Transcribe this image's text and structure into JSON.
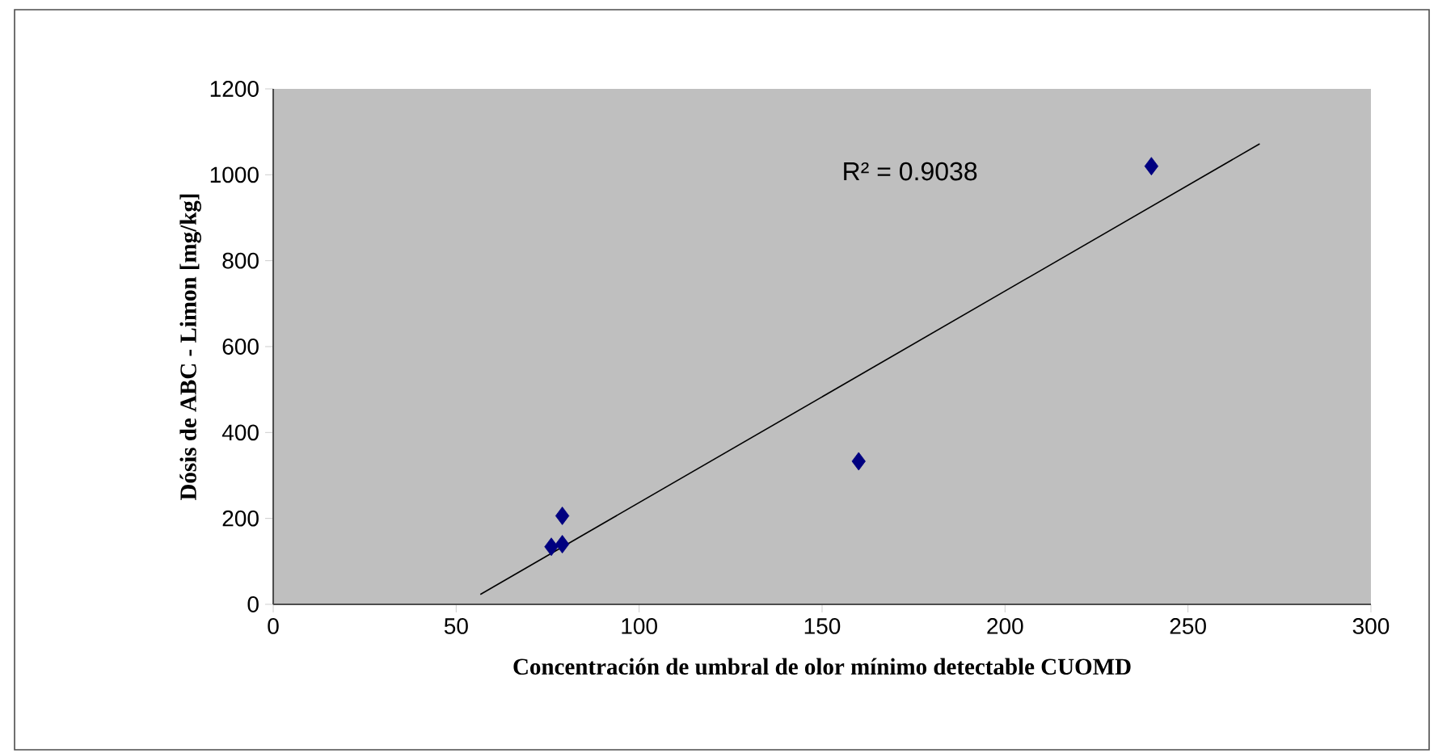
{
  "chart_data": {
    "type": "scatter",
    "xlabel": "Concentración de umbral de olor mínimo detectable CUOMD",
    "ylabel": "Dósis de ABC - Limon [mg/kg]",
    "series": [
      {
        "color": "#000080",
        "marker": "diamond",
        "x": [
          240,
          160,
          79,
          79,
          76
        ],
        "values": [
          1020,
          333,
          206,
          140,
          134
        ]
      },
      {
        "type": "line",
        "color": "#000000",
        "marker": "none",
        "x": [
          56.6,
          269.6
        ],
        "values": [
          23,
          1072
        ]
      }
    ],
    "annotations": [
      "R² = 0.9038"
    ],
    "xlim": [
      0,
      300
    ],
    "ylim": [
      0,
      1200
    ],
    "xticks": [
      0,
      50,
      100,
      150,
      200,
      250,
      300
    ],
    "yticks": [
      0,
      200,
      400,
      600,
      800,
      1000,
      1200
    ],
    "grid": false
  }
}
